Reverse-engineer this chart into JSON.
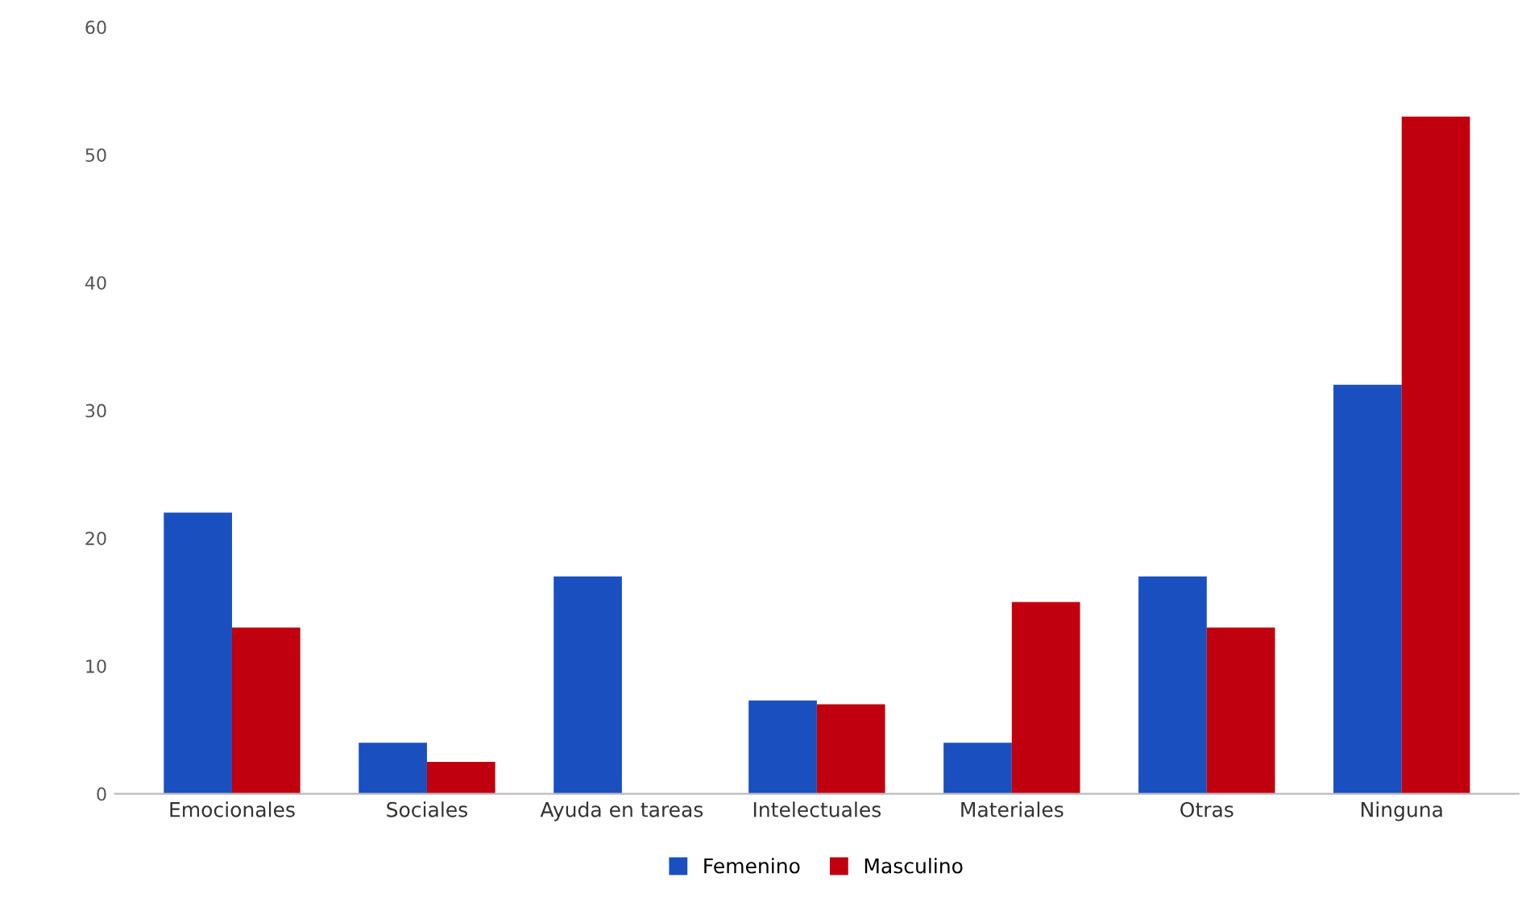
{
  "chart_data": {
    "type": "bar",
    "categories": [
      "Emocionales",
      "Sociales",
      "Ayuda en tareas",
      "Intelectuales",
      "Materiales",
      "Otras",
      "Ninguna"
    ],
    "series": [
      {
        "name": "Femenino",
        "color": "#1a4fc0",
        "values": [
          22,
          4,
          17,
          7.3,
          4,
          17,
          32
        ]
      },
      {
        "name": "Masculino",
        "color": "#c0000f",
        "values": [
          13,
          2.5,
          0,
          7,
          15,
          13,
          53
        ]
      }
    ],
    "ylim": [
      0,
      60
    ],
    "yticks": [
      0,
      10,
      20,
      30,
      40,
      50,
      60
    ],
    "grid": false,
    "legend": "bottom"
  }
}
